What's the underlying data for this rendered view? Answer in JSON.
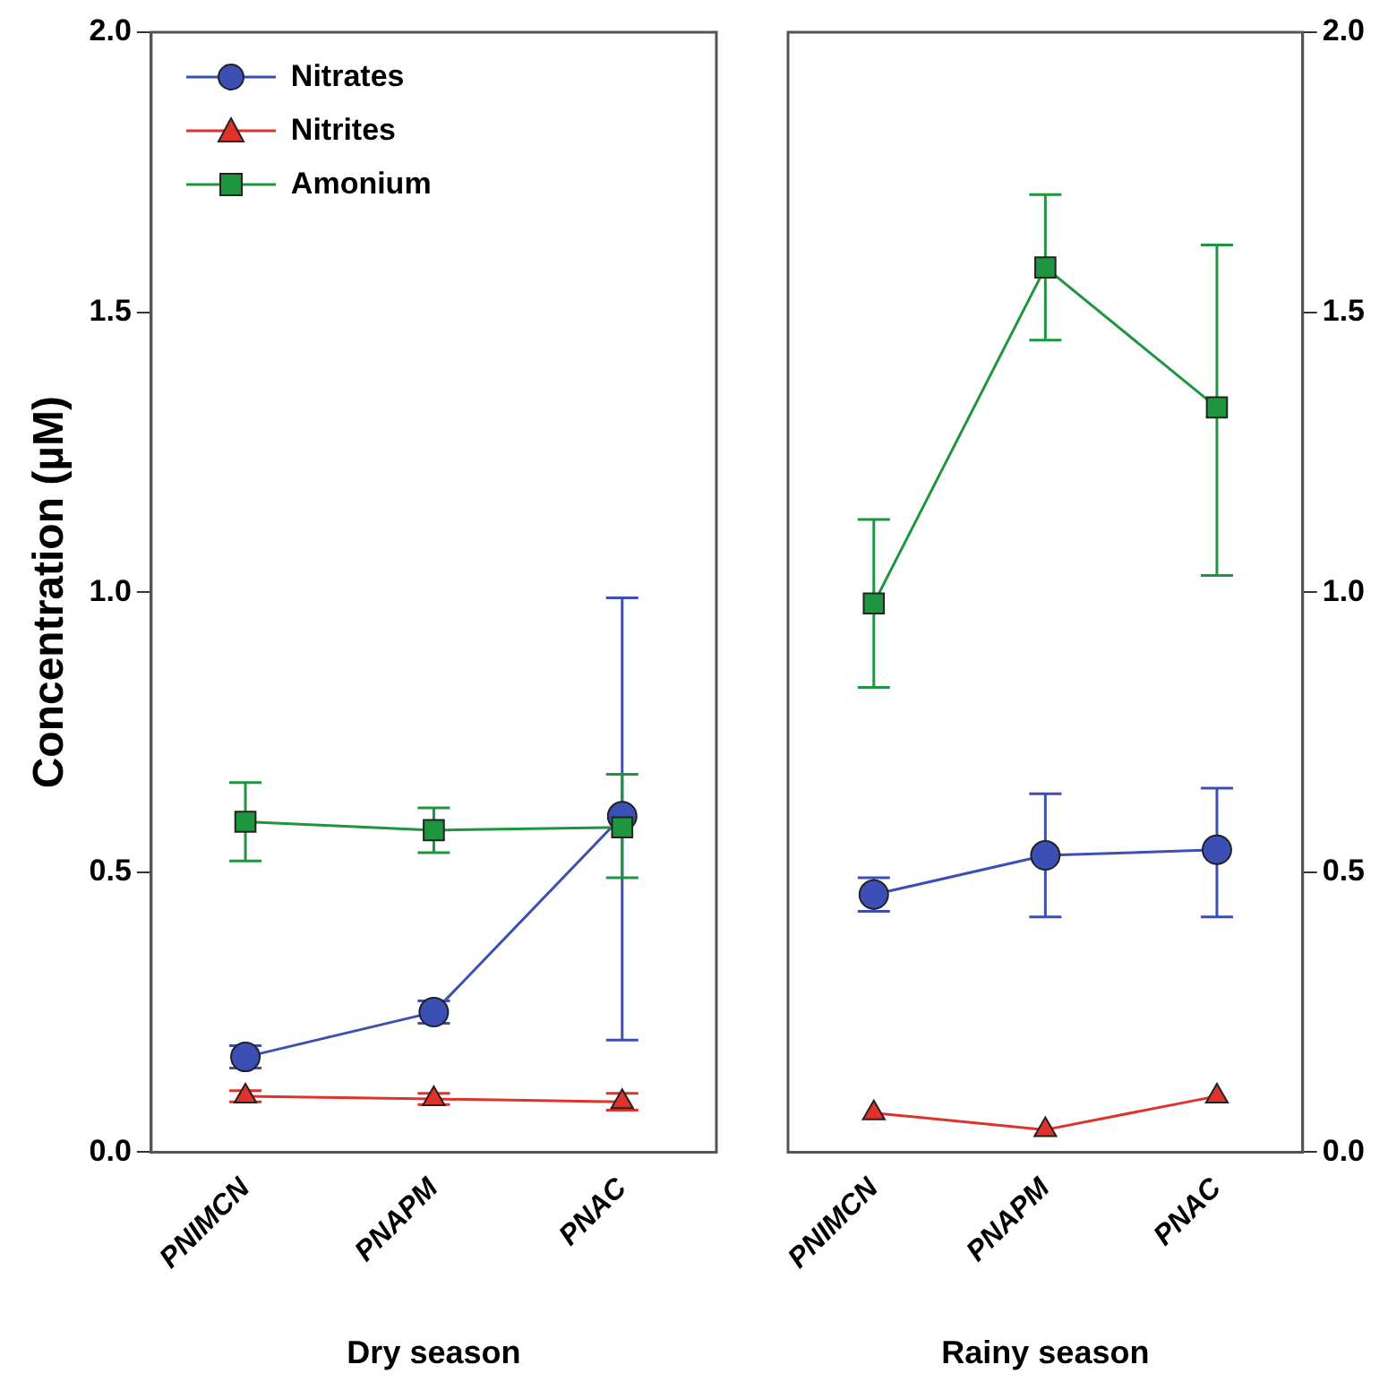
{
  "chart_data": [
    {
      "type": "line",
      "xlabel": "Dry season",
      "ylabel": "Concentration (µM)",
      "categories": [
        "PNIMCN",
        "PNAPM",
        "PNAC"
      ],
      "ylim": [
        0,
        2
      ],
      "yticks": [
        {
          "value": 0,
          "label": "0.0"
        },
        {
          "value": 0.5,
          "label": "0.5"
        },
        {
          "value": 1,
          "label": "1.0"
        },
        {
          "value": 1.5,
          "label": "1.5"
        },
        {
          "value": 2,
          "label": "2.0"
        }
      ],
      "legend": "top left",
      "grid": false,
      "series": [
        {
          "name": "Nitrates",
          "color": "#3b4fb5",
          "marker": "circle",
          "values": [
            0.17,
            0.25,
            0.6
          ],
          "errors": [
            [
              0.15,
              0.19
            ],
            [
              0.23,
              0.27
            ],
            [
              0.2,
              0.99
            ]
          ]
        },
        {
          "name": "Nitrites",
          "color": "#e0322a",
          "marker": "triangle",
          "values": [
            0.1,
            0.095,
            0.09
          ],
          "errors": [
            [
              0.09,
              0.11
            ],
            [
              0.085,
              0.105
            ],
            [
              0.075,
              0.105
            ]
          ]
        },
        {
          "name": "Amonium",
          "color": "#1e9640",
          "marker": "square",
          "values": [
            0.59,
            0.575,
            0.58
          ],
          "errors": [
            [
              0.52,
              0.66
            ],
            [
              0.535,
              0.615
            ],
            [
              0.49,
              0.675
            ]
          ]
        }
      ]
    },
    {
      "type": "line",
      "xlabel": "Rainy season",
      "categories": [
        "PNIMCN",
        "PNAPM",
        "PNAC"
      ],
      "y2lim": [
        0,
        2
      ],
      "y2ticks": [
        {
          "value": 0,
          "label": "0.0"
        },
        {
          "value": 0.5,
          "label": "0.5"
        },
        {
          "value": 1,
          "label": "1.0"
        },
        {
          "value": 1.5,
          "label": "1.5"
        },
        {
          "value": 2,
          "label": "2.0"
        }
      ],
      "grid": false,
      "series": [
        {
          "color": "#3b4fb5",
          "marker": "circle",
          "axis": "y2",
          "values": [
            0.46,
            0.53,
            0.54
          ],
          "errors": [
            [
              0.43,
              0.49
            ],
            [
              0.42,
              0.64
            ],
            [
              0.42,
              0.65
            ]
          ]
        },
        {
          "color": "#e0322a",
          "marker": "triangle",
          "axis": "y2",
          "values": [
            0.07,
            0.04,
            0.1
          ]
        },
        {
          "color": "#1e9640",
          "marker": "square",
          "axis": "y2",
          "values": [
            0.98,
            1.58,
            1.33
          ],
          "errors": [
            [
              0.83,
              1.13
            ],
            [
              1.45,
              1.71
            ],
            [
              1.03,
              1.62
            ]
          ]
        }
      ]
    }
  ]
}
